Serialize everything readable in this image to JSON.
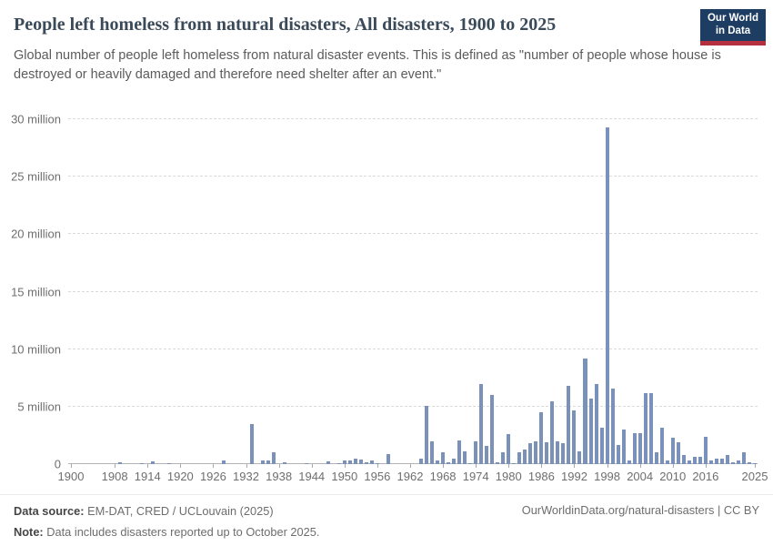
{
  "header": {
    "title": "People left homeless from natural disasters, All disasters, 1900 to 2025",
    "subtitle": "Global number of people left homeless from natural disaster events. This is defined as \"number of people whose house is destroyed or heavily damaged and therefore need shelter after an event.\"",
    "logo": {
      "line1": "Our World",
      "line2": "in Data",
      "bg_color": "#1d3d63",
      "accent_color": "#b5303f"
    }
  },
  "chart_data": {
    "type": "bar",
    "title": "People left homeless from natural disasters, All disasters, 1900 to 2025",
    "xlabel": "",
    "ylabel": "",
    "unit": "million people",
    "grid": true,
    "legend_position": "none",
    "bar_color": "#7a91ba",
    "ylim": [
      0,
      30
    ],
    "yticks": [
      {
        "value": 0,
        "label": "0"
      },
      {
        "value": 5,
        "label": "5 million"
      },
      {
        "value": 10,
        "label": "10 million"
      },
      {
        "value": 15,
        "label": "15 million"
      },
      {
        "value": 20,
        "label": "20 million"
      },
      {
        "value": 25,
        "label": "25 million"
      },
      {
        "value": 30,
        "label": "30 million"
      }
    ],
    "xticks": [
      1900,
      1908,
      1914,
      1920,
      1926,
      1932,
      1938,
      1944,
      1950,
      1956,
      1962,
      1968,
      1974,
      1980,
      1986,
      1992,
      1998,
      2004,
      2010,
      2016,
      2025
    ],
    "x_start": 1900,
    "x_end": 2025,
    "values_unit": "millions",
    "values": [
      0,
      0,
      0,
      0,
      0,
      0,
      0,
      0,
      0,
      0.15,
      0,
      0,
      0,
      0.08,
      0,
      0.25,
      0,
      0,
      0.06,
      0,
      0,
      0,
      0,
      0,
      0,
      0,
      0,
      0,
      0.3,
      0,
      0,
      0,
      0,
      3.45,
      0,
      0.3,
      0.35,
      1.0,
      0,
      0.2,
      0,
      0,
      0,
      0.1,
      0,
      0,
      0,
      0.22,
      0,
      0.07,
      0.36,
      0.3,
      0.5,
      0.43,
      0.17,
      0.35,
      0.1,
      0,
      0.85,
      0,
      0,
      0,
      0,
      0,
      0.45,
      5.1,
      2.0,
      0.35,
      1.0,
      0.2,
      0.45,
      2.1,
      1.1,
      0.12,
      2.0,
      7.0,
      1.6,
      6.0,
      0.2,
      1.05,
      2.6,
      0.12,
      1.0,
      1.25,
      1.8,
      2.0,
      4.5,
      1.9,
      5.5,
      2.0,
      1.8,
      6.8,
      4.7,
      1.1,
      9.2,
      5.7,
      7.0,
      3.2,
      29.3,
      6.6,
      1.7,
      3.0,
      0.3,
      2.7,
      2.7,
      6.2,
      6.2,
      1.05,
      3.2,
      0.3,
      2.3,
      1.9,
      0.8,
      0.3,
      0.6,
      0.65,
      2.4,
      0.35,
      0.5,
      0.45,
      0.8,
      0.2,
      0.35,
      1.0,
      0.15,
      0.08
    ]
  },
  "footer": {
    "source_label": "Data source:",
    "source_text": " EM-DAT, CRED / UCLouvain (2025)",
    "note_label": "Note:",
    "note_text": " Data includes disasters reported up to October 2025.",
    "citation": "OurWorldinData.org/natural-disasters | CC BY"
  }
}
